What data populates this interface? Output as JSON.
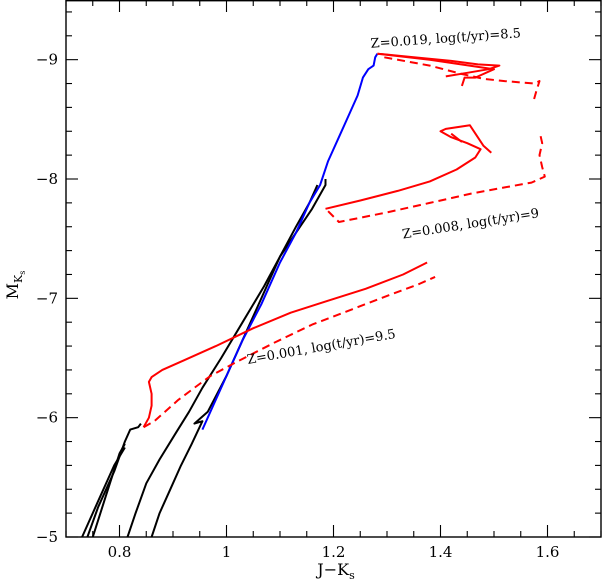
{
  "chart_data": {
    "type": "line",
    "xlabel": "J−K",
    "xlabel_sub": "s",
    "ylabel": "M",
    "ylabel_sub": "K",
    "ylabel_subsub": "s",
    "xlim": [
      0.7,
      1.7
    ],
    "ylim": [
      -5.0,
      -9.5
    ],
    "y_inverted": true,
    "x_ticks": [
      {
        "value": 0.8,
        "label": "0.8"
      },
      {
        "value": 1.0,
        "label": "1"
      },
      {
        "value": 1.2,
        "label": "1.2"
      },
      {
        "value": 1.4,
        "label": "1.4"
      },
      {
        "value": 1.6,
        "label": "1.6"
      }
    ],
    "y_ticks": [
      {
        "value": -5,
        "label": "−5"
      },
      {
        "value": -6,
        "label": "−6"
      },
      {
        "value": -7,
        "label": "−7"
      },
      {
        "value": -8,
        "label": "−8"
      },
      {
        "value": -9,
        "label": "−9"
      }
    ],
    "annotations": [
      {
        "text": "Z=0.019,  log(t/yr)=8.5",
        "x": 1.27,
        "y": -9.1,
        "angle": -4
      },
      {
        "text": "Z=0.008,  log(t/yr)=9",
        "x": 1.33,
        "y": -7.5,
        "angle": -9
      },
      {
        "text": "Z=0.001,  log(t/yr)=9.5",
        "x": 1.04,
        "y": -6.45,
        "angle": -10
      }
    ],
    "series": [
      {
        "color": "#000000",
        "dash": "solid",
        "points": [
          [
            0.74,
            -5.0
          ],
          [
            0.76,
            -5.25
          ],
          [
            0.79,
            -5.55
          ],
          [
            0.81,
            -5.8
          ],
          [
            0.82,
            -5.9
          ],
          [
            0.835,
            -5.92
          ],
          [
            0.84,
            -5.95
          ]
        ]
      },
      {
        "color": "#000000",
        "dash": "solid",
        "points": [
          [
            0.75,
            -5.0
          ],
          [
            0.775,
            -5.35
          ],
          [
            0.8,
            -5.7
          ],
          [
            0.81,
            -5.78
          ]
        ]
      },
      {
        "color": "#000000",
        "dash": "solid",
        "points": [
          [
            0.73,
            -5.0
          ],
          [
            0.76,
            -5.3
          ],
          [
            0.79,
            -5.6
          ],
          [
            0.81,
            -5.75
          ]
        ]
      },
      {
        "color": "#000000",
        "dash": "solid",
        "points": [
          [
            0.815,
            -5.0
          ],
          [
            0.83,
            -5.2
          ],
          [
            0.85,
            -5.45
          ],
          [
            0.875,
            -5.65
          ],
          [
            0.905,
            -5.87
          ],
          [
            0.93,
            -6.05
          ],
          [
            0.955,
            -6.25
          ],
          [
            0.99,
            -6.5
          ],
          [
            1.03,
            -6.8
          ],
          [
            1.07,
            -7.1
          ],
          [
            1.1,
            -7.35
          ],
          [
            1.13,
            -7.55
          ],
          [
            1.16,
            -7.75
          ],
          [
            1.185,
            -7.95
          ],
          [
            1.185,
            -8.0
          ]
        ]
      },
      {
        "color": "#000000",
        "dash": "solid",
        "points": [
          [
            0.86,
            -5.0
          ],
          [
            0.875,
            -5.2
          ],
          [
            0.895,
            -5.4
          ],
          [
            0.915,
            -5.6
          ],
          [
            0.935,
            -5.78
          ],
          [
            0.955,
            -5.97
          ],
          [
            0.94,
            -5.95
          ],
          [
            0.965,
            -6.05
          ],
          [
            1.0,
            -6.35
          ],
          [
            1.04,
            -6.75
          ],
          [
            1.07,
            -7.05
          ],
          [
            1.1,
            -7.35
          ],
          [
            1.13,
            -7.6
          ],
          [
            1.155,
            -7.8
          ],
          [
            1.17,
            -7.95
          ]
        ]
      },
      {
        "color": "#0000ff",
        "dash": "solid",
        "points": [
          [
            0.955,
            -5.9
          ],
          [
            0.975,
            -6.1
          ],
          [
            1.0,
            -6.35
          ],
          [
            1.03,
            -6.65
          ],
          [
            1.065,
            -6.95
          ],
          [
            1.1,
            -7.3
          ],
          [
            1.13,
            -7.55
          ],
          [
            1.155,
            -7.8
          ],
          [
            1.175,
            -7.95
          ],
          [
            1.19,
            -8.15
          ],
          [
            1.21,
            -8.35
          ],
          [
            1.23,
            -8.55
          ],
          [
            1.245,
            -8.7
          ],
          [
            1.255,
            -8.85
          ],
          [
            1.265,
            -8.92
          ],
          [
            1.275,
            -8.95
          ],
          [
            1.278,
            -9.02
          ],
          [
            1.282,
            -9.05
          ]
        ]
      },
      {
        "color": "#ff0000",
        "dash": "solid",
        "points": [
          [
            1.282,
            -9.05
          ],
          [
            1.35,
            -9.02
          ],
          [
            1.42,
            -8.99
          ],
          [
            1.47,
            -8.96
          ],
          [
            1.51,
            -8.95
          ],
          [
            1.49,
            -8.92
          ],
          [
            1.45,
            -8.89
          ],
          [
            1.41,
            -8.86
          ]
        ]
      },
      {
        "color": "#ff0000",
        "dash": "solid",
        "points": [
          [
            1.282,
            -9.05
          ],
          [
            1.38,
            -9.0
          ],
          [
            1.5,
            -8.92
          ],
          [
            1.465,
            -8.85
          ],
          [
            1.445,
            -8.85
          ],
          [
            1.44,
            -8.78
          ]
        ]
      },
      {
        "color": "#ff0000",
        "dash": "dash",
        "points": [
          [
            1.295,
            -9.02
          ],
          [
            1.38,
            -8.95
          ],
          [
            1.44,
            -8.88
          ],
          [
            1.48,
            -8.84
          ],
          [
            1.52,
            -8.82
          ],
          [
            1.575,
            -8.8
          ],
          [
            1.585,
            -8.82
          ],
          [
            1.58,
            -8.75
          ],
          [
            1.575,
            -8.67
          ]
        ]
      },
      {
        "color": "#ff0000",
        "dash": "solid",
        "points": [
          [
            1.185,
            -7.75
          ],
          [
            1.25,
            -7.82
          ],
          [
            1.32,
            -7.9
          ],
          [
            1.38,
            -7.98
          ],
          [
            1.43,
            -8.08
          ],
          [
            1.465,
            -8.18
          ],
          [
            1.475,
            -8.25
          ],
          [
            1.45,
            -8.3
          ],
          [
            1.42,
            -8.35
          ],
          [
            1.4,
            -8.4
          ],
          [
            1.41,
            -8.42
          ],
          [
            1.455,
            -8.45
          ],
          [
            1.48,
            -8.28
          ],
          [
            1.495,
            -8.22
          ]
        ]
      },
      {
        "color": "#ff0000",
        "dash": "solid",
        "points": [
          [
            1.42,
            -8.38
          ],
          [
            1.44,
            -8.31
          ]
        ]
      },
      {
        "color": "#ff0000",
        "dash": "dash",
        "points": [
          [
            1.19,
            -7.73
          ],
          [
            1.21,
            -7.64
          ],
          [
            1.3,
            -7.72
          ],
          [
            1.38,
            -7.8
          ],
          [
            1.46,
            -7.88
          ],
          [
            1.52,
            -7.93
          ],
          [
            1.57,
            -7.97
          ],
          [
            1.595,
            -8.02
          ],
          [
            1.59,
            -8.1
          ],
          [
            1.585,
            -8.2
          ],
          [
            1.59,
            -8.3
          ],
          [
            1.585,
            -8.4
          ]
        ]
      },
      {
        "color": "#ff0000",
        "dash": "solid",
        "points": [
          [
            0.845,
            -5.92
          ],
          [
            0.855,
            -6.0
          ],
          [
            0.86,
            -6.1
          ],
          [
            0.86,
            -6.2
          ],
          [
            0.855,
            -6.3
          ],
          [
            0.86,
            -6.34
          ],
          [
            0.88,
            -6.4
          ],
          [
            0.92,
            -6.48
          ],
          [
            0.98,
            -6.6
          ],
          [
            1.05,
            -6.75
          ],
          [
            1.12,
            -6.88
          ],
          [
            1.19,
            -6.98
          ],
          [
            1.26,
            -7.08
          ],
          [
            1.33,
            -7.2
          ],
          [
            1.375,
            -7.3
          ]
        ]
      },
      {
        "color": "#ff0000",
        "dash": "dash",
        "points": [
          [
            0.845,
            -5.92
          ],
          [
            0.865,
            -5.97
          ],
          [
            0.885,
            -6.05
          ],
          [
            0.91,
            -6.15
          ],
          [
            0.94,
            -6.25
          ],
          [
            0.97,
            -6.35
          ],
          [
            1.02,
            -6.47
          ],
          [
            1.09,
            -6.63
          ],
          [
            1.16,
            -6.78
          ],
          [
            1.23,
            -6.9
          ],
          [
            1.3,
            -7.02
          ],
          [
            1.36,
            -7.12
          ],
          [
            1.39,
            -7.18
          ]
        ]
      }
    ]
  }
}
